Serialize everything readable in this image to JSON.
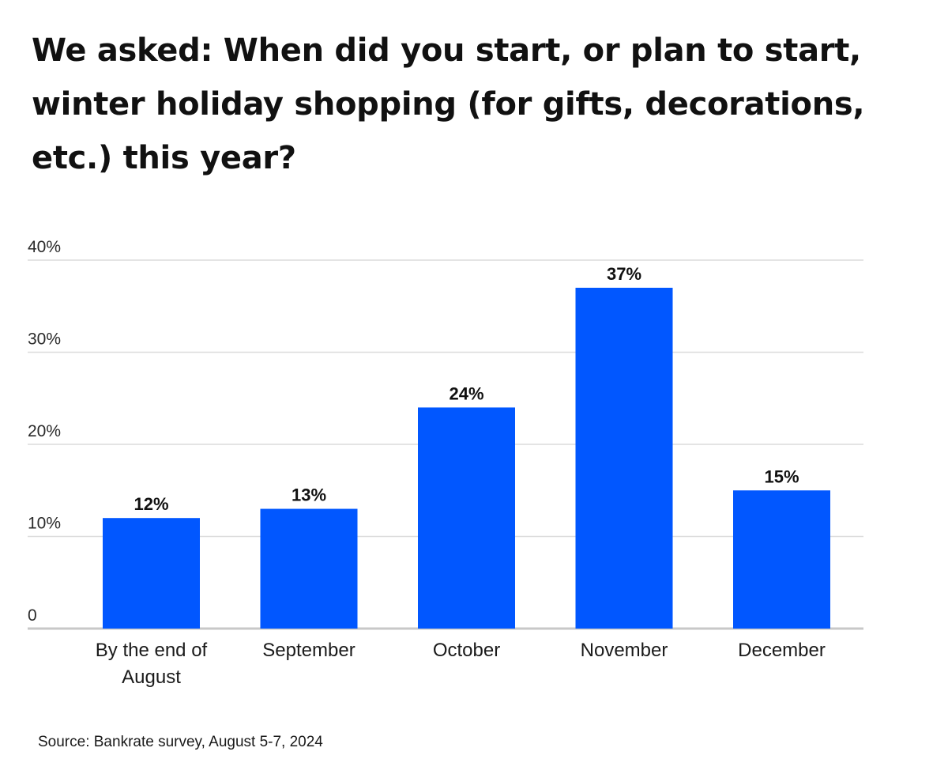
{
  "chart_data": {
    "type": "bar",
    "title": "We asked: When did you start, or plan to start, winter holiday shopping (for gifts, decorations, etc.) this year?",
    "categories": [
      [
        "By the end of",
        "August"
      ],
      [
        "September"
      ],
      [
        "October"
      ],
      [
        "November"
      ],
      [
        "December"
      ]
    ],
    "values": [
      12,
      13,
      24,
      37,
      15
    ],
    "value_labels": [
      "12%",
      "13%",
      "24%",
      "37%",
      "15%"
    ],
    "yticks": [
      0,
      10,
      20,
      30,
      40
    ],
    "ytick_labels": [
      "0",
      "10%",
      "20%",
      "30%",
      "40%"
    ],
    "ylim": [
      0,
      40
    ],
    "xlabel": "",
    "ylabel": "",
    "grid": true,
    "source": "Source: Bankrate survey, August 5-7, 2024"
  },
  "colors": {
    "bar": "#0157FF",
    "grid": "#DCDCDC",
    "axis": "#C8C8C8",
    "text": "#111111"
  }
}
